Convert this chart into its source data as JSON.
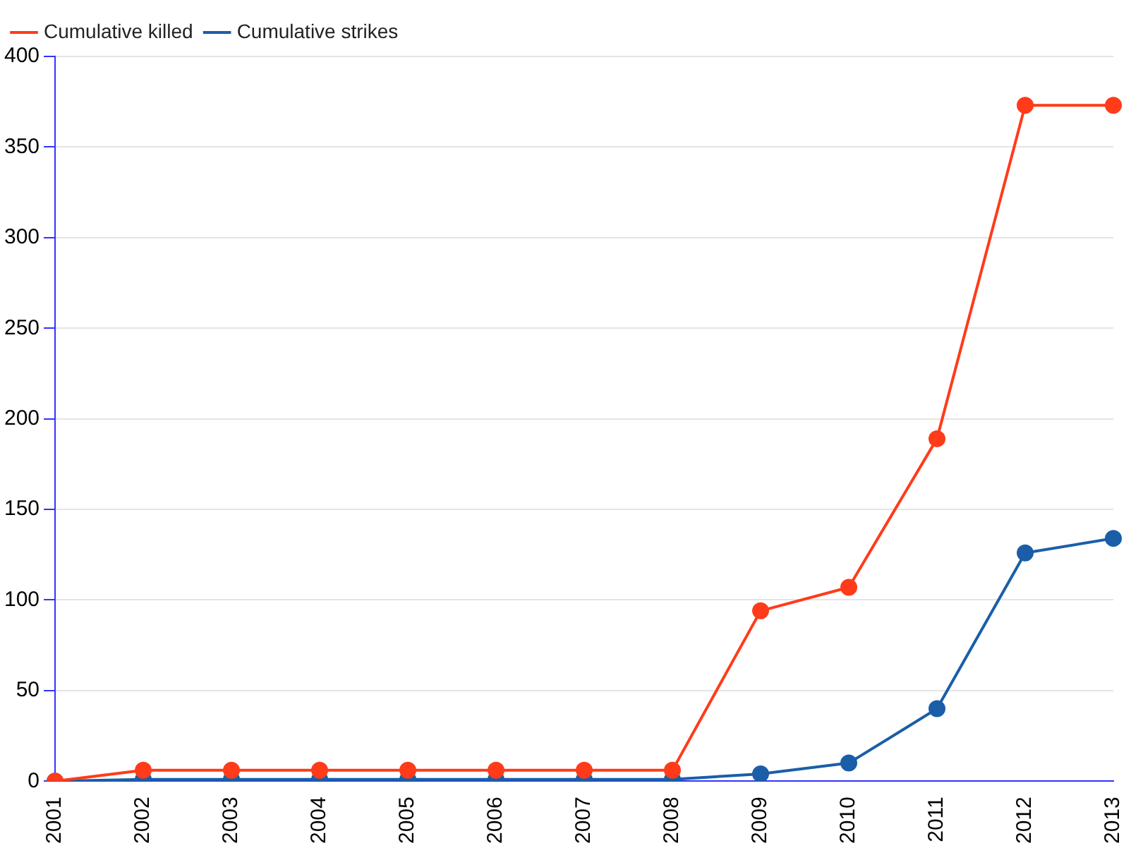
{
  "chart_data": {
    "type": "line",
    "categories": [
      "2001",
      "2002",
      "2003",
      "2004",
      "2005",
      "2006",
      "2007",
      "2008",
      "2009",
      "2010",
      "2011",
      "2012",
      "2013"
    ],
    "series": [
      {
        "name": "Cumulative killed",
        "color": "#ff3b1a",
        "values": [
          0,
          6,
          6,
          6,
          6,
          6,
          6,
          6,
          94,
          107,
          189,
          373,
          373
        ]
      },
      {
        "name": "Cumulative strikes",
        "color": "#1a5ea8",
        "values": [
          0,
          1,
          1,
          1,
          1,
          1,
          1,
          1,
          4,
          10,
          40,
          126,
          134
        ]
      }
    ],
    "ylim": [
      0,
      400
    ],
    "yticks": [
      0,
      50,
      100,
      150,
      200,
      250,
      300,
      350,
      400
    ],
    "grid": "y",
    "legend": "top left",
    "marker": "circle",
    "line_style": "solid"
  }
}
